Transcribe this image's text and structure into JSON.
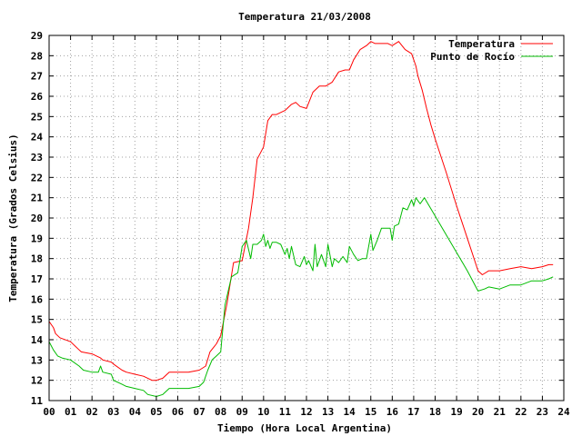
{
  "chart_data": {
    "type": "line",
    "title": "Temperatura 21/03/2008",
    "xlabel": "Tiempo (Hora Local Argentina)",
    "ylabel": "Temperatura (Grados Celsius)",
    "xlim": [
      0,
      24
    ],
    "ylim": [
      11,
      29
    ],
    "xticks": [
      "00",
      "01",
      "02",
      "03",
      "04",
      "05",
      "06",
      "07",
      "08",
      "09",
      "10",
      "11",
      "12",
      "13",
      "14",
      "15",
      "16",
      "17",
      "18",
      "19",
      "20",
      "21",
      "22",
      "23",
      "24"
    ],
    "yticks": [
      "11",
      "12",
      "13",
      "14",
      "15",
      "16",
      "17",
      "18",
      "19",
      "20",
      "21",
      "22",
      "23",
      "24",
      "25",
      "26",
      "27",
      "28",
      "29"
    ],
    "grid": true,
    "legend_position": "top-right",
    "series": [
      {
        "name": "Temperatura",
        "color": "#ff0000",
        "x": [
          0.0,
          0.2,
          0.3,
          0.5,
          1.0,
          1.4,
          1.5,
          2.0,
          2.4,
          2.5,
          2.9,
          3.0,
          3.4,
          3.6,
          4.0,
          4.4,
          4.8,
          5.0,
          5.3,
          5.6,
          6.0,
          6.5,
          7.0,
          7.3,
          7.5,
          7.8,
          8.0,
          8.3,
          8.6,
          9.0,
          9.3,
          9.5,
          9.7,
          10.0,
          10.2,
          10.4,
          10.6,
          11.0,
          11.3,
          11.5,
          11.7,
          12.0,
          12.3,
          12.6,
          12.9,
          13.2,
          13.5,
          13.8,
          14.0,
          14.2,
          14.5,
          14.8,
          15.0,
          15.2,
          15.5,
          15.8,
          16.0,
          16.3,
          16.6,
          16.9,
          17.1,
          17.2,
          17.4,
          17.6,
          17.8,
          18.0,
          18.5,
          19.0,
          19.5,
          20.0,
          20.2,
          20.5,
          21.0,
          21.5,
          22.0,
          22.5,
          23.0,
          23.3,
          23.5
        ],
        "values": [
          14.9,
          14.6,
          14.3,
          14.1,
          13.9,
          13.5,
          13.4,
          13.3,
          13.1,
          13.0,
          12.9,
          12.8,
          12.5,
          12.4,
          12.3,
          12.2,
          12.0,
          12.0,
          12.1,
          12.4,
          12.4,
          12.4,
          12.5,
          12.7,
          13.4,
          13.8,
          14.2,
          15.8,
          17.8,
          17.9,
          19.5,
          21.0,
          22.9,
          23.5,
          24.8,
          25.1,
          25.1,
          25.3,
          25.6,
          25.7,
          25.5,
          25.4,
          26.2,
          26.5,
          26.5,
          26.7,
          27.2,
          27.3,
          27.3,
          27.8,
          28.3,
          28.5,
          28.7,
          28.6,
          28.6,
          28.6,
          28.5,
          28.7,
          28.3,
          28.1,
          27.5,
          27.0,
          26.3,
          25.4,
          24.6,
          23.9,
          22.3,
          20.6,
          19.0,
          17.4,
          17.2,
          17.4,
          17.4,
          17.5,
          17.6,
          17.5,
          17.6,
          17.7,
          17.7
        ]
      },
      {
        "name": "Punto de Rocío",
        "color": "#00bb00",
        "x": [
          0.0,
          0.2,
          0.4,
          0.6,
          1.0,
          1.4,
          1.6,
          2.0,
          2.3,
          2.4,
          2.5,
          2.9,
          3.0,
          3.4,
          3.6,
          4.0,
          4.4,
          4.6,
          5.0,
          5.3,
          5.6,
          6.0,
          6.5,
          7.0,
          7.2,
          7.4,
          7.6,
          7.8,
          8.0,
          8.2,
          8.5,
          8.8,
          9.0,
          9.2,
          9.4,
          9.5,
          9.7,
          9.9,
          10.0,
          10.1,
          10.2,
          10.3,
          10.4,
          10.6,
          10.8,
          11.0,
          11.1,
          11.2,
          11.3,
          11.5,
          11.7,
          11.9,
          12.0,
          12.1,
          12.3,
          12.4,
          12.5,
          12.7,
          12.9,
          13.0,
          13.2,
          13.3,
          13.5,
          13.7,
          13.9,
          14.0,
          14.2,
          14.4,
          14.6,
          14.8,
          15.0,
          15.1,
          15.3,
          15.5,
          15.7,
          15.9,
          16.0,
          16.1,
          16.3,
          16.5,
          16.7,
          16.9,
          17.0,
          17.1,
          17.3,
          17.5,
          18.0,
          18.5,
          19.0,
          19.5,
          20.0,
          20.3,
          20.5,
          21.0,
          21.5,
          22.0,
          22.5,
          23.0,
          23.3,
          23.5
        ],
        "values": [
          13.9,
          13.5,
          13.2,
          13.1,
          13.0,
          12.7,
          12.5,
          12.4,
          12.4,
          12.7,
          12.4,
          12.3,
          12.0,
          11.8,
          11.7,
          11.6,
          11.5,
          11.3,
          11.2,
          11.3,
          11.6,
          11.6,
          11.6,
          11.7,
          11.9,
          12.5,
          13.0,
          13.2,
          13.4,
          15.7,
          17.1,
          17.3,
          18.6,
          18.9,
          18.0,
          18.7,
          18.7,
          18.9,
          19.2,
          18.6,
          18.9,
          18.5,
          18.8,
          18.8,
          18.7,
          18.2,
          18.5,
          18.0,
          18.6,
          17.7,
          17.6,
          18.1,
          17.7,
          17.9,
          17.4,
          18.7,
          17.6,
          18.2,
          17.6,
          18.7,
          17.6,
          18.0,
          17.8,
          18.1,
          17.8,
          18.6,
          18.2,
          17.9,
          18.0,
          18.0,
          19.2,
          18.4,
          18.9,
          19.5,
          19.5,
          19.5,
          18.9,
          19.6,
          19.7,
          20.5,
          20.4,
          20.9,
          20.6,
          21.0,
          20.7,
          21.0,
          20.1,
          19.2,
          18.3,
          17.4,
          16.4,
          16.5,
          16.6,
          16.5,
          16.7,
          16.7,
          16.9,
          16.9,
          17.0,
          17.1
        ]
      }
    ]
  }
}
